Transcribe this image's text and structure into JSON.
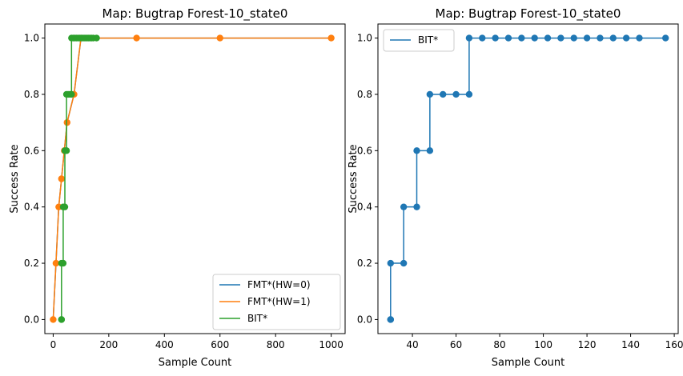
{
  "chart_data": [
    {
      "type": "line",
      "title": "Map: Bugtrap Forest-10_state0",
      "xlabel": "Sample Count",
      "ylabel": "Success Rate",
      "xlim": [
        -30,
        1050
      ],
      "ylim": [
        -0.05,
        1.05
      ],
      "xticks": [
        0,
        200,
        400,
        600,
        800,
        1000
      ],
      "yticks": [
        0.0,
        0.2,
        0.4,
        0.6,
        0.8,
        1.0
      ],
      "xtick_labels": [
        "0",
        "200",
        "400",
        "600",
        "800",
        "1000"
      ],
      "ytick_labels": [
        "0.0",
        "0.2",
        "0.4",
        "0.6",
        "0.8",
        "1.0"
      ],
      "legend_position": "lower-right",
      "grid": false,
      "series": [
        {
          "name": "FMT*(HW=0)",
          "color": "#1f77b4",
          "markers": false,
          "x": [
            0,
            10,
            20,
            30,
            40,
            50,
            75,
            100,
            300,
            600,
            1000
          ],
          "y": [
            0.0,
            0.2,
            0.4,
            0.5,
            0.6,
            0.7,
            0.8,
            1.0,
            1.0,
            1.0,
            1.0
          ]
        },
        {
          "name": "FMT*(HW=1)",
          "color": "#ff7f0e",
          "markers": true,
          "x": [
            0,
            10,
            20,
            30,
            40,
            50,
            75,
            100,
            300,
            600,
            1000
          ],
          "y": [
            0.0,
            0.2,
            0.4,
            0.5,
            0.6,
            0.7,
            0.8,
            1.0,
            1.0,
            1.0,
            1.0
          ]
        },
        {
          "name": "BIT*",
          "color": "#2ca02c",
          "markers": true,
          "x": [
            30,
            30,
            30,
            36,
            36,
            42,
            42,
            48,
            48,
            54,
            60,
            66,
            66,
            72,
            78,
            84,
            90,
            96,
            102,
            108,
            114,
            120,
            126,
            132,
            138,
            144,
            156
          ],
          "y": [
            0.0,
            0.0,
            0.2,
            0.2,
            0.4,
            0.4,
            0.6,
            0.6,
            0.8,
            0.8,
            0.8,
            0.8,
            1.0,
            1.0,
            1.0,
            1.0,
            1.0,
            1.0,
            1.0,
            1.0,
            1.0,
            1.0,
            1.0,
            1.0,
            1.0,
            1.0,
            1.0
          ]
        }
      ]
    },
    {
      "type": "line",
      "title": "Map: Bugtrap Forest-10_state0",
      "xlabel": "Sample Count",
      "ylabel": "Success Rate",
      "xlim": [
        24.2,
        161.8
      ],
      "ylim": [
        -0.05,
        1.05
      ],
      "xticks": [
        40,
        60,
        80,
        100,
        120,
        140,
        160
      ],
      "yticks": [
        0.0,
        0.2,
        0.4,
        0.6,
        0.8,
        1.0
      ],
      "xtick_labels": [
        "40",
        "60",
        "80",
        "100",
        "120",
        "140",
        "160"
      ],
      "ytick_labels": [
        "0.0",
        "0.2",
        "0.4",
        "0.6",
        "0.8",
        "1.0"
      ],
      "legend_position": "top-left",
      "grid": false,
      "series": [
        {
          "name": "BIT*",
          "color": "#1f77b4",
          "markers": true,
          "x": [
            30,
            30,
            30,
            36,
            36,
            42,
            42,
            48,
            48,
            54,
            60,
            66,
            66,
            72,
            78,
            84,
            90,
            96,
            102,
            108,
            114,
            120,
            126,
            132,
            138,
            144,
            156
          ],
          "y": [
            0.0,
            0.0,
            0.2,
            0.2,
            0.4,
            0.4,
            0.6,
            0.6,
            0.8,
            0.8,
            0.8,
            0.8,
            1.0,
            1.0,
            1.0,
            1.0,
            1.0,
            1.0,
            1.0,
            1.0,
            1.0,
            1.0,
            1.0,
            1.0,
            1.0,
            1.0,
            1.0
          ]
        }
      ]
    }
  ]
}
